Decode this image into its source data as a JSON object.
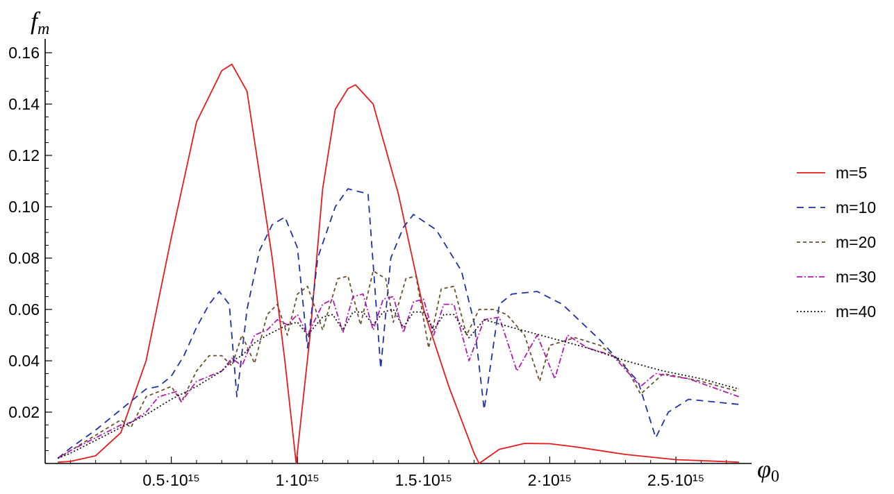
{
  "chart_data": {
    "type": "line",
    "ylabel": "f_m",
    "ylabel_main": "f",
    "ylabel_sub": "m",
    "xlabel": "φ_0",
    "xlabel_main": "φ",
    "xlabel_sub": "0",
    "xlim": [
      0,
      2800000000000000.0
    ],
    "ylim": [
      0,
      0.165
    ],
    "xticks": [
      {
        "value": 500000000000000.0,
        "label": "0.5·10¹⁵"
      },
      {
        "value": 1000000000000000.0,
        "label": "1·10¹⁵"
      },
      {
        "value": 1500000000000000.0,
        "label": "1.5·10¹⁵"
      },
      {
        "value": 2000000000000000.0,
        "label": "2·10¹⁵"
      },
      {
        "value": 2500000000000000.0,
        "label": "2.5·10¹⁵"
      }
    ],
    "yticks": [
      {
        "value": 0.02,
        "label": "0.02"
      },
      {
        "value": 0.04,
        "label": "0.04"
      },
      {
        "value": 0.06,
        "label": "0.06"
      },
      {
        "value": 0.08,
        "label": "0.08"
      },
      {
        "value": 0.1,
        "label": "0.10"
      },
      {
        "value": 0.12,
        "label": "0.12"
      },
      {
        "value": 0.14,
        "label": "0.14"
      },
      {
        "value": 0.16,
        "label": "0.16"
      }
    ],
    "legend_position": "right",
    "grid": false,
    "series": [
      {
        "name": "m=5",
        "color": "#e8191b",
        "dash": "solid",
        "x": [
          50000000000000.0,
          100000000000000.0,
          200000000000000.0,
          300000000000000.0,
          400000000000000.0,
          500000000000000.0,
          600000000000000.0,
          700000000000000.0,
          740000000000000.0,
          800000000000000.0,
          900000000000000.0,
          950000000000000.0,
          995000000000000.0,
          1050000000000000.0,
          1100000000000000.0,
          1150000000000000.0,
          1200000000000000.0,
          1230000000000000.0,
          1300000000000000.0,
          1400000000000000.0,
          1500000000000000.0,
          1600000000000000.0,
          1700000000000000.0,
          1720000000000000.0,
          1800000000000000.0,
          1900000000000000.0,
          2000000000000000.0,
          2100000000000000.0,
          2300000000000000.0,
          2500000000000000.0,
          2750000000000000.0
        ],
        "y": [
          0.0005,
          0.0008,
          0.003,
          0.012,
          0.04,
          0.088,
          0.133,
          0.153,
          0.1555,
          0.145,
          0.08,
          0.04,
          0.0,
          0.05,
          0.107,
          0.138,
          0.146,
          0.1475,
          0.14,
          0.105,
          0.06,
          0.03,
          0.004,
          0.0,
          0.0055,
          0.0078,
          0.0077,
          0.0065,
          0.0035,
          0.0015,
          0.0005
        ]
      },
      {
        "name": "m=10",
        "color": "#1f2fa8",
        "dash": "10,7",
        "x": [
          50000000000000.0,
          100000000000000.0,
          200000000000000.0,
          300000000000000.0,
          400000000000000.0,
          450000000000000.0,
          500000000000000.0,
          550000000000000.0,
          600000000000000.0,
          650000000000000.0,
          690000000000000.0,
          730000000000000.0,
          760000000000000.0,
          800000000000000.0,
          850000000000000.0,
          900000000000000.0,
          950000000000000.0,
          1000000000000000.0,
          1040000000000000.0,
          1080000000000000.0,
          1150000000000000.0,
          1200000000000000.0,
          1280000000000000.0,
          1330000000000000.0,
          1370000000000000.0,
          1420000000000000.0,
          1460000000000000.0,
          1550000000000000.0,
          1650000000000000.0,
          1700000000000000.0,
          1740000000000000.0,
          1800000000000000.0,
          1850000000000000.0,
          1950000000000000.0,
          2050000000000000.0,
          2200000000000000.0,
          2350000000000000.0,
          2420000000000000.0,
          2470000000000000.0,
          2550000000000000.0,
          2750000000000000.0
        ],
        "y": [
          0.002,
          0.006,
          0.013,
          0.021,
          0.029,
          0.03,
          0.034,
          0.042,
          0.053,
          0.062,
          0.067,
          0.062,
          0.026,
          0.06,
          0.083,
          0.093,
          0.096,
          0.084,
          0.045,
          0.08,
          0.1,
          0.107,
          0.105,
          0.037,
          0.08,
          0.092,
          0.097,
          0.091,
          0.075,
          0.055,
          0.021,
          0.062,
          0.066,
          0.067,
          0.062,
          0.048,
          0.032,
          0.01,
          0.02,
          0.025,
          0.023
        ]
      },
      {
        "name": "m=20",
        "color": "#6b4f2a",
        "dash": "5,4",
        "x": [
          50000000000000.0,
          100000000000000.0,
          200000000000000.0,
          300000000000000.0,
          340000000000000.0,
          400000000000000.0,
          500000000000000.0,
          540000000000000.0,
          600000000000000.0,
          650000000000000.0,
          700000000000000.0,
          740000000000000.0,
          780000000000000.0,
          830000000000000.0,
          880000000000000.0,
          920000000000000.0,
          960000000000000.0,
          1000000000000000.0,
          1040000000000000.0,
          1100000000000000.0,
          1160000000000000.0,
          1200000000000000.0,
          1250000000000000.0,
          1300000000000000.0,
          1350000000000000.0,
          1380000000000000.0,
          1430000000000000.0,
          1470000000000000.0,
          1520000000000000.0,
          1570000000000000.0,
          1620000000000000.0,
          1670000000000000.0,
          1720000000000000.0,
          1780000000000000.0,
          1830000000000000.0,
          1900000000000000.0,
          1960000000000000.0,
          2000000000000000.0,
          2100000000000000.0,
          2200000000000000.0,
          2300000000000000.0,
          2360000000000000.0,
          2450000000000000.0,
          2600000000000000.0,
          2750000000000000.0
        ],
        "y": [
          0.002,
          0.005,
          0.011,
          0.017,
          0.014,
          0.026,
          0.03,
          0.024,
          0.036,
          0.042,
          0.042,
          0.038,
          0.05,
          0.039,
          0.058,
          0.062,
          0.05,
          0.066,
          0.069,
          0.052,
          0.072,
          0.073,
          0.054,
          0.075,
          0.072,
          0.055,
          0.072,
          0.073,
          0.045,
          0.068,
          0.069,
          0.05,
          0.06,
          0.06,
          0.058,
          0.05,
          0.032,
          0.046,
          0.049,
          0.046,
          0.038,
          0.027,
          0.035,
          0.032,
          0.028
        ]
      },
      {
        "name": "m=30",
        "color": "#b219b3",
        "dash": "8,3,2,3",
        "x": [
          50000000000000.0,
          100000000000000.0,
          200000000000000.0,
          300000000000000.0,
          340000000000000.0,
          400000000000000.0,
          450000000000000.0,
          520000000000000.0,
          540000000000000.0,
          600000000000000.0,
          650000000000000.0,
          700000000000000.0,
          740000000000000.0,
          780000000000000.0,
          830000000000000.0,
          880000000000000.0,
          920000000000000.0,
          960000000000000.0,
          1000000000000000.0,
          1040000000000000.0,
          1100000000000000.0,
          1140000000000000.0,
          1180000000000000.0,
          1220000000000000.0,
          1260000000000000.0,
          1300000000000000.0,
          1340000000000000.0,
          1380000000000000.0,
          1420000000000000.0,
          1460000000000000.0,
          1500000000000000.0,
          1540000000000000.0,
          1580000000000000.0,
          1620000000000000.0,
          1680000000000000.0,
          1740000000000000.0,
          1800000000000000.0,
          1870000000000000.0,
          1950000000000000.0,
          2020000000000000.0,
          2070000000000000.0,
          2150000000000000.0,
          2250000000000000.0,
          2360000000000000.0,
          2420000000000000.0,
          2550000000000000.0,
          2750000000000000.0
        ],
        "y": [
          0.002,
          0.005,
          0.01,
          0.015,
          0.016,
          0.02,
          0.026,
          0.028,
          0.024,
          0.032,
          0.034,
          0.036,
          0.041,
          0.038,
          0.05,
          0.052,
          0.056,
          0.054,
          0.058,
          0.05,
          0.062,
          0.064,
          0.051,
          0.065,
          0.066,
          0.052,
          0.064,
          0.065,
          0.051,
          0.063,
          0.064,
          0.05,
          0.062,
          0.062,
          0.04,
          0.056,
          0.057,
          0.036,
          0.05,
          0.033,
          0.05,
          0.045,
          0.042,
          0.03,
          0.035,
          0.033,
          0.026
        ]
      },
      {
        "name": "m=40",
        "color": "#111111",
        "dash": "2,3",
        "x": [
          50000000000000.0,
          100000000000000.0,
          200000000000000.0,
          300000000000000.0,
          340000000000000.0,
          400000000000000.0,
          500000000000000.0,
          600000000000000.0,
          650000000000000.0,
          700000000000000.0,
          740000000000000.0,
          780000000000000.0,
          830000000000000.0,
          880000000000000.0,
          920000000000000.0,
          960000000000000.0,
          1000000000000000.0,
          1040000000000000.0,
          1100000000000000.0,
          1140000000000000.0,
          1180000000000000.0,
          1220000000000000.0,
          1260000000000000.0,
          1300000000000000.0,
          1340000000000000.0,
          1380000000000000.0,
          1420000000000000.0,
          1460000000000000.0,
          1500000000000000.0,
          1540000000000000.0,
          1580000000000000.0,
          1620000000000000.0,
          1680000000000000.0,
          1740000000000000.0,
          1850000000000000.0,
          2000000000000000.0,
          2150000000000000.0,
          2300000000000000.0,
          2450000000000000.0,
          2600000000000000.0,
          2750000000000000.0
        ],
        "y": [
          0.002,
          0.004,
          0.009,
          0.014,
          0.016,
          0.019,
          0.025,
          0.03,
          0.033,
          0.036,
          0.04,
          0.042,
          0.047,
          0.05,
          0.052,
          0.054,
          0.055,
          0.05,
          0.057,
          0.058,
          0.052,
          0.059,
          0.059,
          0.054,
          0.059,
          0.06,
          0.053,
          0.059,
          0.059,
          0.052,
          0.058,
          0.058,
          0.049,
          0.056,
          0.053,
          0.049,
          0.045,
          0.04,
          0.036,
          0.033,
          0.029
        ]
      }
    ]
  }
}
